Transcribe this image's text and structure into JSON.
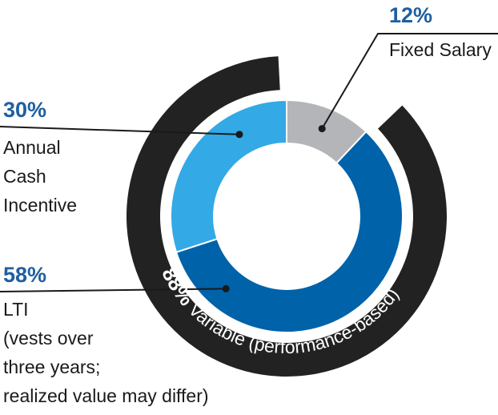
{
  "chart_data": {
    "type": "pie",
    "style": "donut",
    "slices": [
      {
        "label_lines": [
          "Fixed Salary"
        ],
        "value": 12,
        "pct_text": "12%",
        "color": "#b3b5b8"
      },
      {
        "label_lines": [
          "LTI",
          "(vests over",
          "three years;",
          "realized value may differ)"
        ],
        "value": 58,
        "pct_text": "58%",
        "color": "#0062a8"
      },
      {
        "label_lines": [
          "Annual",
          "Cash",
          "Incentive"
        ],
        "value": 30,
        "pct_text": "30%",
        "color": "#33a9e6"
      }
    ],
    "outer_arc": {
      "value": 88,
      "bold_text": "88%",
      "text": " Variable (performance-based)",
      "color": "#222222"
    },
    "colors": {
      "pct": "#1f5fa0",
      "leader": "#1a1a1a",
      "label": "#1a1a1a"
    }
  }
}
